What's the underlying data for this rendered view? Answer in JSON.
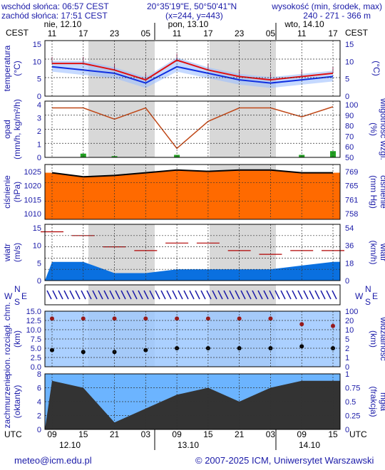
{
  "header": {
    "sunrise": "wschód słońca: 06:57 CEST",
    "sunset": "zachód słońca: 17:51 CEST",
    "coords": "20°35'19\"E, 50°50'41\"N",
    "grid": "(x=244, y=443)",
    "height_title": "wysokość (min, środek, max)",
    "height_values": "240 - 271 - 366 m"
  },
  "top_axis": {
    "tz": "CEST",
    "days": [
      "nie, 12.10",
      "pon, 13.10",
      "wto, 14.10"
    ],
    "hours": [
      "11",
      "17",
      "23",
      "05",
      "11",
      "17",
      "23",
      "05",
      "11",
      "17"
    ]
  },
  "bottom_axis": {
    "tz": "UTC",
    "hours": [
      "09",
      "15",
      "21",
      "03",
      "09",
      "15",
      "21",
      "03",
      "09",
      "15"
    ],
    "dates": [
      "12.10",
      "13.10",
      "14.10"
    ]
  },
  "panels": {
    "temperature": {
      "left_label": "temperatura",
      "left_unit": "(°C)",
      "right_label": "(°C)",
      "left_ticks": [
        "0",
        "5",
        "10",
        "15"
      ],
      "right_ticks": [
        "0",
        "5",
        "10",
        "15"
      ]
    },
    "precip": {
      "left_label": "opad",
      "left_unit": "(mm/h, kg/m²/h)",
      "right_label": "wilgotność wzgl.",
      "right_unit": "(%)",
      "left_ticks": [
        "0",
        "1",
        "2",
        "3",
        "4"
      ],
      "right_ticks": [
        "50",
        "60",
        "70",
        "80",
        "90",
        "100"
      ]
    },
    "pressure": {
      "left_label": "ciśnienie",
      "left_unit": "(hPa)",
      "right_label": "ciśnienie",
      "right_unit": "(mm Hg)",
      "left_ticks": [
        "1010",
        "1015",
        "1020",
        "1025"
      ],
      "right_ticks": [
        "758",
        "761",
        "765",
        "769"
      ]
    },
    "wind": {
      "left_label": "wiatr",
      "left_unit": "(m/s)",
      "right_label": "wiatr",
      "right_unit": "(km/h)",
      "left_ticks": [
        "0",
        "5",
        "10",
        "15"
      ],
      "right_ticks": [
        "0",
        "18",
        "36",
        "54"
      ]
    },
    "winddir": {
      "letters": [
        "W",
        "N",
        "S",
        "E"
      ]
    },
    "visibility": {
      "left_label": "pion. rozciągł. chm.",
      "left_unit": "(km)",
      "right_label": "widzialność",
      "right_unit": "(km)",
      "left_ticks": [
        "0.0",
        "2.5",
        "5.0",
        "7.5",
        "10.0",
        "12.5",
        "15.0"
      ],
      "right_ticks": [
        "0",
        "1",
        "2",
        "5",
        "10",
        "20",
        "100"
      ]
    },
    "clouds": {
      "left_label": "zachmurzenie",
      "left_unit": "(oktanty)",
      "right_label": "mgła",
      "right_unit": "(frakcja)",
      "left_ticks": [
        "0",
        "2",
        "4",
        "6",
        "8"
      ],
      "right_ticks": [
        "0",
        "0.25",
        "0.5",
        "0.75",
        "1"
      ]
    }
  },
  "footer": {
    "email": "meteo@icm.edu.pl",
    "copyright": "© 2007-2025 ICM, Uniwersytet Warszawski"
  },
  "colors": {
    "temp_red": "#e01010",
    "temp_blue": "#1030e0",
    "night_shade": "#d8d8d8",
    "pressure_orange": "#ff6a00",
    "humidity_brown": "#c04818",
    "wind_blue": "#0a70e0",
    "fog_orange": "#e8a000"
  },
  "chart_data": [
    {
      "type": "line",
      "title": "temperatura",
      "ylabel": "(°C)",
      "ylim": [
        0,
        17
      ],
      "x": [
        "11",
        "17",
        "23",
        "05",
        "11",
        "17",
        "23",
        "05",
        "11",
        "17"
      ],
      "series": [
        {
          "name": "temperatura",
          "values": [
            10,
            10,
            8,
            5,
            11,
            8,
            6,
            5,
            6,
            7
          ]
        },
        {
          "values": [
            9,
            8,
            7,
            4,
            9,
            7,
            5,
            4,
            5,
            6
          ]
        }
      ]
    },
    {
      "type": "bar",
      "title": "opad",
      "ylabel": "(mm/h, kg/m²/h)",
      "ylim": [
        0,
        4.5
      ],
      "x": [
        "11",
        "17",
        "23",
        "05",
        "11",
        "17",
        "23",
        "05",
        "11",
        "17"
      ],
      "values": [
        0,
        0.3,
        0.1,
        0,
        0.2,
        0,
        0,
        0,
        0.2,
        0.5
      ]
    },
    {
      "type": "line",
      "title": "wilgotność wzgl.",
      "ylabel": "(%)",
      "ylim": [
        50,
        100
      ],
      "x": [
        "11",
        "17",
        "23",
        "05",
        "11",
        "17",
        "23",
        "05",
        "11",
        "17"
      ],
      "values": [
        94,
        94,
        84,
        94,
        58,
        82,
        94,
        94,
        86,
        95
      ]
    },
    {
      "type": "area",
      "title": "ciśnienie",
      "ylabel": "(hPa)",
      "ylim": [
        1007,
        1027
      ],
      "x": [
        "11",
        "17",
        "23",
        "05",
        "11",
        "17",
        "23",
        "05",
        "11",
        "17"
      ],
      "values": [
        1024,
        1022.5,
        1023,
        1024,
        1025,
        1024.5,
        1025,
        1025,
        1024,
        1024
      ]
    },
    {
      "type": "line",
      "title": "wiatr",
      "ylabel": "(m/s)",
      "ylim": [
        0,
        15
      ],
      "x": [
        "11",
        "17",
        "23",
        "05",
        "11",
        "17",
        "23",
        "05",
        "11",
        "17"
      ],
      "series": [
        {
          "values": [
            5,
            5,
            2,
            2,
            3,
            3,
            3,
            3,
            4,
            5
          ]
        },
        {
          "values": [
            13,
            12,
            9,
            8,
            10,
            10,
            8,
            7,
            8,
            8
          ]
        }
      ]
    },
    {
      "type": "scatter",
      "title": "pion. rozciągł. chm.",
      "ylabel": "(km)",
      "ylim": [
        0,
        15
      ],
      "x": [
        "11",
        "17",
        "23",
        "05",
        "11",
        "17",
        "23",
        "05",
        "11",
        "17"
      ],
      "series": [
        {
          "values": [
            13,
            13,
            13,
            13,
            13,
            13,
            13,
            13,
            11.5,
            11
          ]
        },
        {
          "values": [
            4.5,
            4,
            4,
            4.5,
            5,
            5,
            5,
            5,
            5.5,
            5
          ]
        }
      ]
    },
    {
      "type": "area",
      "title": "zachmurzenie",
      "ylabel": "(oktanty)",
      "ylim": [
        0,
        8
      ],
      "x": [
        "11",
        "17",
        "23",
        "05",
        "11",
        "17",
        "23",
        "05",
        "11",
        "17"
      ],
      "values": [
        7,
        6,
        1,
        3,
        5,
        6,
        4,
        6,
        7,
        7
      ]
    }
  ]
}
